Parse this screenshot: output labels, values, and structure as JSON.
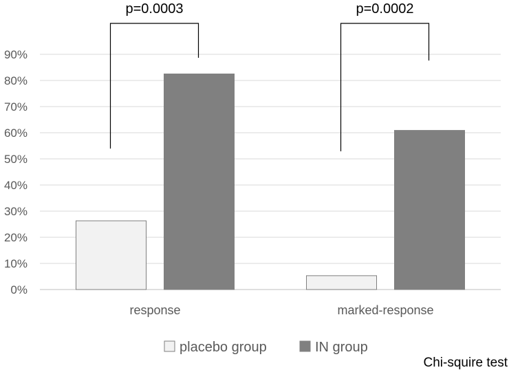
{
  "chart_data": {
    "type": "bar",
    "categories": [
      "response",
      "marked-response"
    ],
    "series": [
      {
        "name": "placebo group",
        "values": [
          26.3,
          5.3
        ],
        "color": "#f2f2f2",
        "stroke": "#7f7f7f"
      },
      {
        "name": "IN group",
        "values": [
          82.5,
          60.9
        ],
        "color": "#808080",
        "stroke": "#808080"
      }
    ],
    "ylim": [
      0,
      90
    ],
    "yticks": [
      "0%",
      "10%",
      "20%",
      "30%",
      "40%",
      "50%",
      "60%",
      "70%",
      "80%",
      "90%"
    ],
    "grid": true,
    "legend": "bottom",
    "annotations": [
      {
        "category": "response",
        "text": "p=0.0003"
      },
      {
        "category": "marked-response",
        "text": "p=0.0002"
      }
    ],
    "note": "Chi-squire test"
  }
}
